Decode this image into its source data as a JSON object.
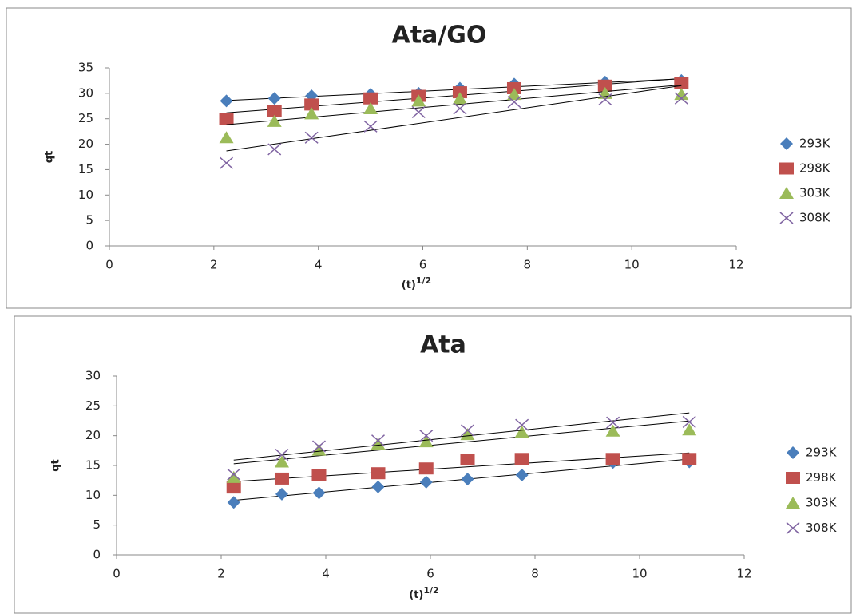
{
  "chart_data": [
    {
      "type": "scatter",
      "title": "Ata/GO",
      "x_label": "(t)",
      "x_label_sup": "1/2",
      "y_label": "qt",
      "x": [
        2.24,
        3.16,
        3.87,
        5,
        5.92,
        6.71,
        7.75,
        9.49,
        10.95
      ],
      "series": [
        {
          "name": "293K",
          "color": "#4a7ebb",
          "marker": "diamond",
          "values": [
            28.5,
            29,
            29.5,
            29.8,
            30,
            31,
            31.8,
            32.2,
            32.5
          ]
        },
        {
          "name": "298K",
          "color": "#c0504d",
          "marker": "square",
          "values": [
            25,
            26.5,
            27.8,
            29,
            29.5,
            30.2,
            31,
            31.5,
            32
          ]
        },
        {
          "name": "303K",
          "color": "#9bbb59",
          "marker": "triangle",
          "values": [
            21.3,
            24.5,
            26,
            27,
            28.5,
            29,
            29.8,
            30,
            29.8
          ]
        },
        {
          "name": "308K",
          "color": "#8064a2",
          "marker": "cross",
          "values": [
            16.3,
            19,
            21.3,
            23.5,
            26.3,
            27,
            28.3,
            28.8,
            29
          ]
        }
      ],
      "xlim": [
        0,
        12
      ],
      "xticks": [
        0,
        2,
        4,
        6,
        8,
        10,
        12
      ],
      "ylim": [
        0,
        35
      ],
      "yticks": [
        0,
        5,
        10,
        15,
        20,
        25,
        30,
        35
      ],
      "trendline": "linear",
      "legend": "right"
    },
    {
      "type": "scatter",
      "title": "Ata",
      "x_label": "(t)",
      "x_label_sup": "1/2",
      "y_label": "qt",
      "x": [
        2.24,
        3.16,
        3.87,
        5,
        5.92,
        6.71,
        7.75,
        9.49,
        10.95
      ],
      "series": [
        {
          "name": "293K",
          "color": "#4a7ebb",
          "marker": "diamond",
          "values": [
            8.8,
            10.2,
            10.4,
            11.4,
            12.2,
            12.7,
            13.4,
            15.5,
            15.6
          ]
        },
        {
          "name": "298K",
          "color": "#c0504d",
          "marker": "square",
          "values": [
            11.3,
            12.8,
            13.4,
            13.7,
            14.5,
            16,
            16.1,
            16.1,
            16.1
          ]
        },
        {
          "name": "303K",
          "color": "#9bbb59",
          "marker": "triangle",
          "values": [
            13,
            15.6,
            17.6,
            18.6,
            19,
            20.2,
            20.6,
            20.8,
            21
          ]
        },
        {
          "name": "308K",
          "color": "#8064a2",
          "marker": "cross",
          "values": [
            13.5,
            16.8,
            18.2,
            19.2,
            20,
            20.9,
            21.8,
            22.2,
            22.3
          ]
        }
      ],
      "xlim": [
        0,
        12
      ],
      "xticks": [
        0,
        2,
        4,
        6,
        8,
        10,
        12
      ],
      "ylim": [
        0,
        30
      ],
      "yticks": [
        0,
        5,
        10,
        15,
        20,
        25,
        30
      ],
      "trendline": "linear",
      "legend": "right"
    }
  ]
}
